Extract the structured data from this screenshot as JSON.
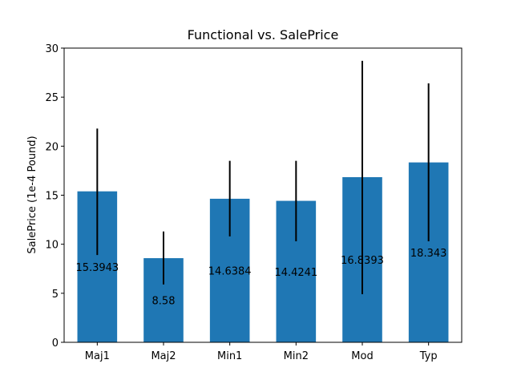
{
  "chart_data": {
    "type": "bar",
    "title": "Functional vs. SalePrice",
    "xlabel": "",
    "ylabel": "SalePrice (1e-4 Pound)",
    "ylim": [
      0,
      30
    ],
    "yticks": [
      "0",
      "5",
      "10",
      "15",
      "20",
      "25",
      "30"
    ],
    "categories": [
      "Maj1",
      "Maj2",
      "Min1",
      "Min2",
      "Mod",
      "Typ"
    ],
    "values": [
      15.3943,
      8.58,
      14.6384,
      14.4241,
      16.8393,
      18.343
    ],
    "value_labels": [
      "15.3943",
      "8.58",
      "14.6384",
      "14.4241",
      "16.8393",
      "18.343"
    ],
    "error_low": [
      8.9,
      5.9,
      10.8,
      10.3,
      4.9,
      10.3
    ],
    "error_high": [
      21.8,
      11.3,
      18.5,
      18.5,
      28.7,
      26.4
    ],
    "grid": false,
    "bar_color": "#1f77b4",
    "errorbar_color": "#000000"
  }
}
